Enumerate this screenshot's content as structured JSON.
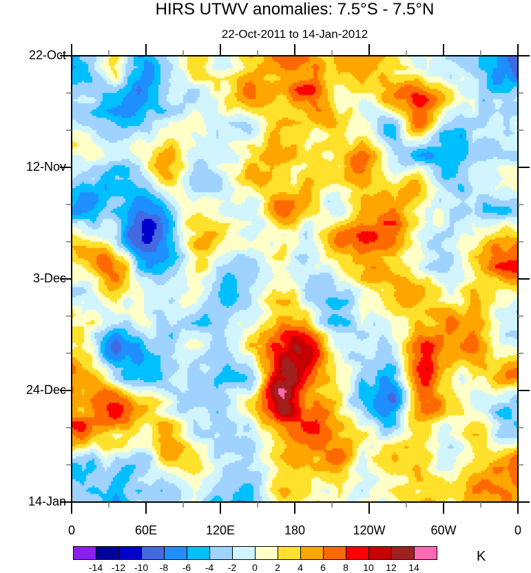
{
  "chart_data": {
    "type": "heatmap",
    "title": "HIRS UTWV anomalies: 7.5°S - 7.5°N",
    "subtitle": "22-Oct-2011 to 14-Jan-2012",
    "xlabel": "",
    "ylabel": "",
    "x_tick_labels": [
      "0",
      "60E",
      "120E",
      "180",
      "120W",
      "60W",
      "0"
    ],
    "x_ticks_deg_east": [
      0,
      60,
      120,
      180,
      240,
      300,
      360
    ],
    "xlim": [
      0,
      360
    ],
    "y_tick_labels": [
      "22-Oct",
      "12-Nov",
      "3-Dec",
      "24-Dec",
      "14-Jan"
    ],
    "y_ticks_days": [
      0,
      21,
      42,
      63,
      84
    ],
    "ylim_days": [
      0,
      84
    ],
    "colorbar": {
      "levels": [
        -14,
        -12,
        -10,
        -8,
        -6,
        -4,
        -2,
        0,
        2,
        4,
        6,
        8,
        10,
        12,
        14
      ],
      "level_labels": [
        "-14",
        "-12",
        "-10",
        "-8",
        "-6",
        "-4",
        "-2",
        "0",
        "2",
        "4",
        "6",
        "8",
        "10",
        "12",
        "14"
      ],
      "colors": [
        "#8a1ff0",
        "#00009c",
        "#0000cd",
        "#4169e1",
        "#1e8fff",
        "#00bfff",
        "#a0d2ff",
        "#d0f5ff",
        "#ffffc8",
        "#ffe02a",
        "#ffa500",
        "#ff6a00",
        "#ff0000",
        "#c80000",
        "#a02020",
        "#ff69b4"
      ],
      "units": "K"
    },
    "grid_note_rows_time_cols_longitude": true,
    "values": [
      [
        -4,
        2,
        -6,
        -2,
        2,
        0,
        4,
        6,
        6,
        3,
        5,
        2,
        0,
        -1,
        -3,
        -8
      ],
      [
        -3,
        -4,
        -7,
        -3,
        -1,
        2,
        6,
        3,
        8,
        2,
        1,
        6,
        8,
        2,
        -2,
        -3
      ],
      [
        -1,
        -5,
        -4,
        -1,
        1,
        -2,
        -2,
        4,
        2,
        4,
        -1,
        -3,
        6,
        -4,
        -2,
        -1
      ],
      [
        1,
        -2,
        2,
        5,
        -1,
        0,
        3,
        5,
        2,
        2,
        5,
        -2,
        -5,
        -6,
        -3,
        -2
      ],
      [
        -3,
        -5,
        -4,
        3,
        -2,
        -1,
        4,
        2,
        4,
        3,
        5,
        2,
        3,
        -4,
        -2,
        0
      ],
      [
        -6,
        -3,
        -9,
        -3,
        2,
        0,
        -1,
        7,
        3,
        -2,
        3,
        6,
        2,
        -1,
        -3,
        -4
      ],
      [
        2,
        -2,
        -11,
        -5,
        4,
        2,
        0,
        1,
        -1,
        5,
        8,
        6,
        1,
        -1,
        2,
        4
      ],
      [
        3,
        7,
        -4,
        -5,
        2,
        -1,
        -2,
        2,
        -2,
        2,
        5,
        3,
        -1,
        -2,
        4,
        8
      ],
      [
        -1,
        2,
        -1,
        -1,
        1,
        -5,
        -2,
        2,
        -1,
        -4,
        2,
        4,
        5,
        1,
        3,
        2
      ],
      [
        2,
        -2,
        0,
        -2,
        -3,
        -2,
        -1,
        6,
        2,
        -5,
        -1,
        0,
        3,
        6,
        4,
        -1
      ],
      [
        1,
        -7,
        -5,
        -3,
        -1,
        -3,
        3,
        9,
        11,
        1,
        -2,
        -2,
        8,
        5,
        7,
        1
      ],
      [
        6,
        -1,
        -6,
        -2,
        -2,
        -4,
        -3,
        12,
        8,
        1,
        -3,
        -5,
        9,
        2,
        1,
        5
      ],
      [
        4,
        9,
        5,
        -1,
        -3,
        -2,
        3,
        13,
        6,
        3,
        -5,
        -7,
        5,
        4,
        1,
        -3
      ],
      [
        7,
        4,
        2,
        4,
        -1,
        -3,
        -2,
        6,
        9,
        5,
        2,
        -2,
        4,
        0,
        3,
        -2
      ],
      [
        -3,
        -1,
        -3,
        4,
        2,
        -2,
        -2,
        4,
        4,
        6,
        0,
        3,
        3,
        -1,
        1,
        6
      ],
      [
        -3,
        -5,
        -3,
        -2,
        -1,
        -4,
        -4,
        3,
        2,
        1,
        -1,
        1,
        3,
        2,
        5,
        6
      ]
    ]
  }
}
